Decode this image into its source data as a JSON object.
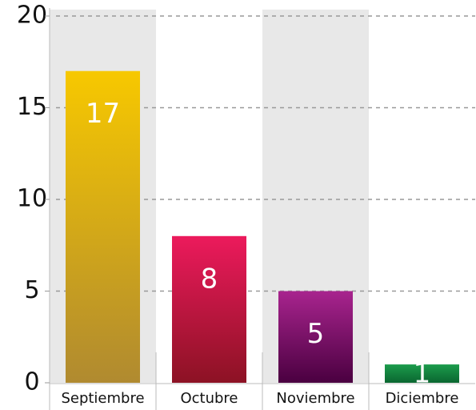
{
  "chart_data": {
    "type": "bar",
    "categories": [
      "Septiembre",
      "Octubre",
      "Noviembre",
      "Diciembre"
    ],
    "values": [
      17,
      8,
      5,
      1
    ],
    "colors": [
      [
        "#f7c800",
        "#b08a30"
      ],
      [
        "#ec1a5c",
        "#8c1224"
      ],
      [
        "#a8248e",
        "#4a0040"
      ],
      [
        "#1c9c4c",
        "#0a6630"
      ]
    ],
    "ylim": [
      0,
      20
    ],
    "yticks": [
      0,
      5,
      10,
      15,
      20
    ],
    "grid": true
  }
}
